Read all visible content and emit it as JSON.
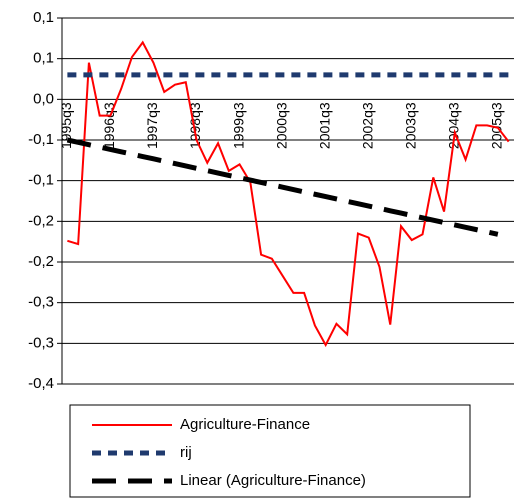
{
  "chart_data": {
    "type": "line",
    "categories": [
      "1995q3",
      null,
      null,
      null,
      "1996q3",
      null,
      null,
      null,
      "1997q3",
      null,
      null,
      null,
      "1998q3",
      null,
      null,
      null,
      "1999q3",
      null,
      null,
      null,
      "2000q3",
      null,
      null,
      null,
      "2001q3",
      null,
      null,
      null,
      "2002q3",
      null,
      null,
      null,
      "2003q3",
      null,
      null,
      null,
      "2004q3",
      null,
      null,
      null,
      "2005q3",
      null
    ],
    "series": [
      {
        "name": "Agriculture-Finance",
        "color": "#ff0000",
        "dash": "solid",
        "values": [
          -0.174,
          -0.178,
          0.045,
          -0.02,
          -0.02,
          0.013,
          0.052,
          0.07,
          0.045,
          0.009,
          0.018,
          0.021,
          -0.05,
          -0.078,
          -0.054,
          -0.088,
          -0.08,
          -0.102,
          -0.191,
          -0.196,
          -0.217,
          -0.238,
          -0.238,
          -0.278,
          -0.302,
          -0.276,
          -0.289,
          -0.165,
          -0.17,
          -0.206,
          -0.277,
          -0.156,
          -0.173,
          -0.166,
          -0.096,
          -0.138,
          -0.041,
          -0.074,
          -0.032,
          -0.032,
          -0.035,
          -0.052
        ]
      },
      {
        "name": "rij",
        "color": "#1f3a6e",
        "dash": "short",
        "values": [
          0.03,
          0.03,
          0.03,
          0.03,
          0.03,
          0.03,
          0.03,
          0.03,
          0.03,
          0.03,
          0.03,
          0.03,
          0.03,
          0.03,
          0.03,
          0.03,
          0.03,
          0.03,
          0.03,
          0.03,
          0.03,
          0.03,
          0.03,
          0.03,
          0.03,
          0.03,
          0.03,
          0.03,
          0.03,
          0.03,
          0.03,
          0.03,
          0.03,
          0.03,
          0.03,
          0.03,
          0.03,
          0.03,
          0.03,
          0.03,
          0.03,
          0.03
        ]
      },
      {
        "name": "Linear (Agriculture-Finance)",
        "color": "#000000",
        "dash": "long",
        "values": [
          -0.05,
          -0.0529,
          -0.0558,
          -0.0587,
          -0.0616,
          -0.0645,
          -0.0674,
          -0.0703,
          -0.0732,
          -0.0761,
          -0.079,
          -0.0819,
          -0.0848,
          -0.0877,
          -0.0906,
          -0.0935,
          -0.0964,
          -0.0993,
          -0.1022,
          -0.1051,
          -0.108,
          -0.1109,
          -0.1138,
          -0.1167,
          -0.1196,
          -0.1225,
          -0.1254,
          -0.1283,
          -0.1312,
          -0.1341,
          -0.137,
          -0.1399,
          -0.1428,
          -0.1457,
          -0.1486,
          -0.1515,
          -0.1544,
          -0.1573,
          -0.1602,
          -0.1631,
          -0.166,
          null
        ]
      }
    ],
    "ylim": [
      -0.35,
      0.1
    ],
    "yticks": [
      {
        "value": 0.1,
        "label": "0,1"
      },
      {
        "value": 0.05,
        "label": "0,1"
      },
      {
        "value": 0,
        "label": "0,0"
      },
      {
        "value": -0.05,
        "label": "-0,1"
      },
      {
        "value": -0.1,
        "label": "-0,1"
      },
      {
        "value": -0.15,
        "label": "-0,2"
      },
      {
        "value": -0.2,
        "label": "-0,2"
      },
      {
        "value": -0.25,
        "label": "-0,3"
      },
      {
        "value": -0.3,
        "label": "-0,3"
      },
      {
        "value": -0.35,
        "label": "-0,4"
      }
    ],
    "grid": true,
    "legend": "bottom"
  }
}
